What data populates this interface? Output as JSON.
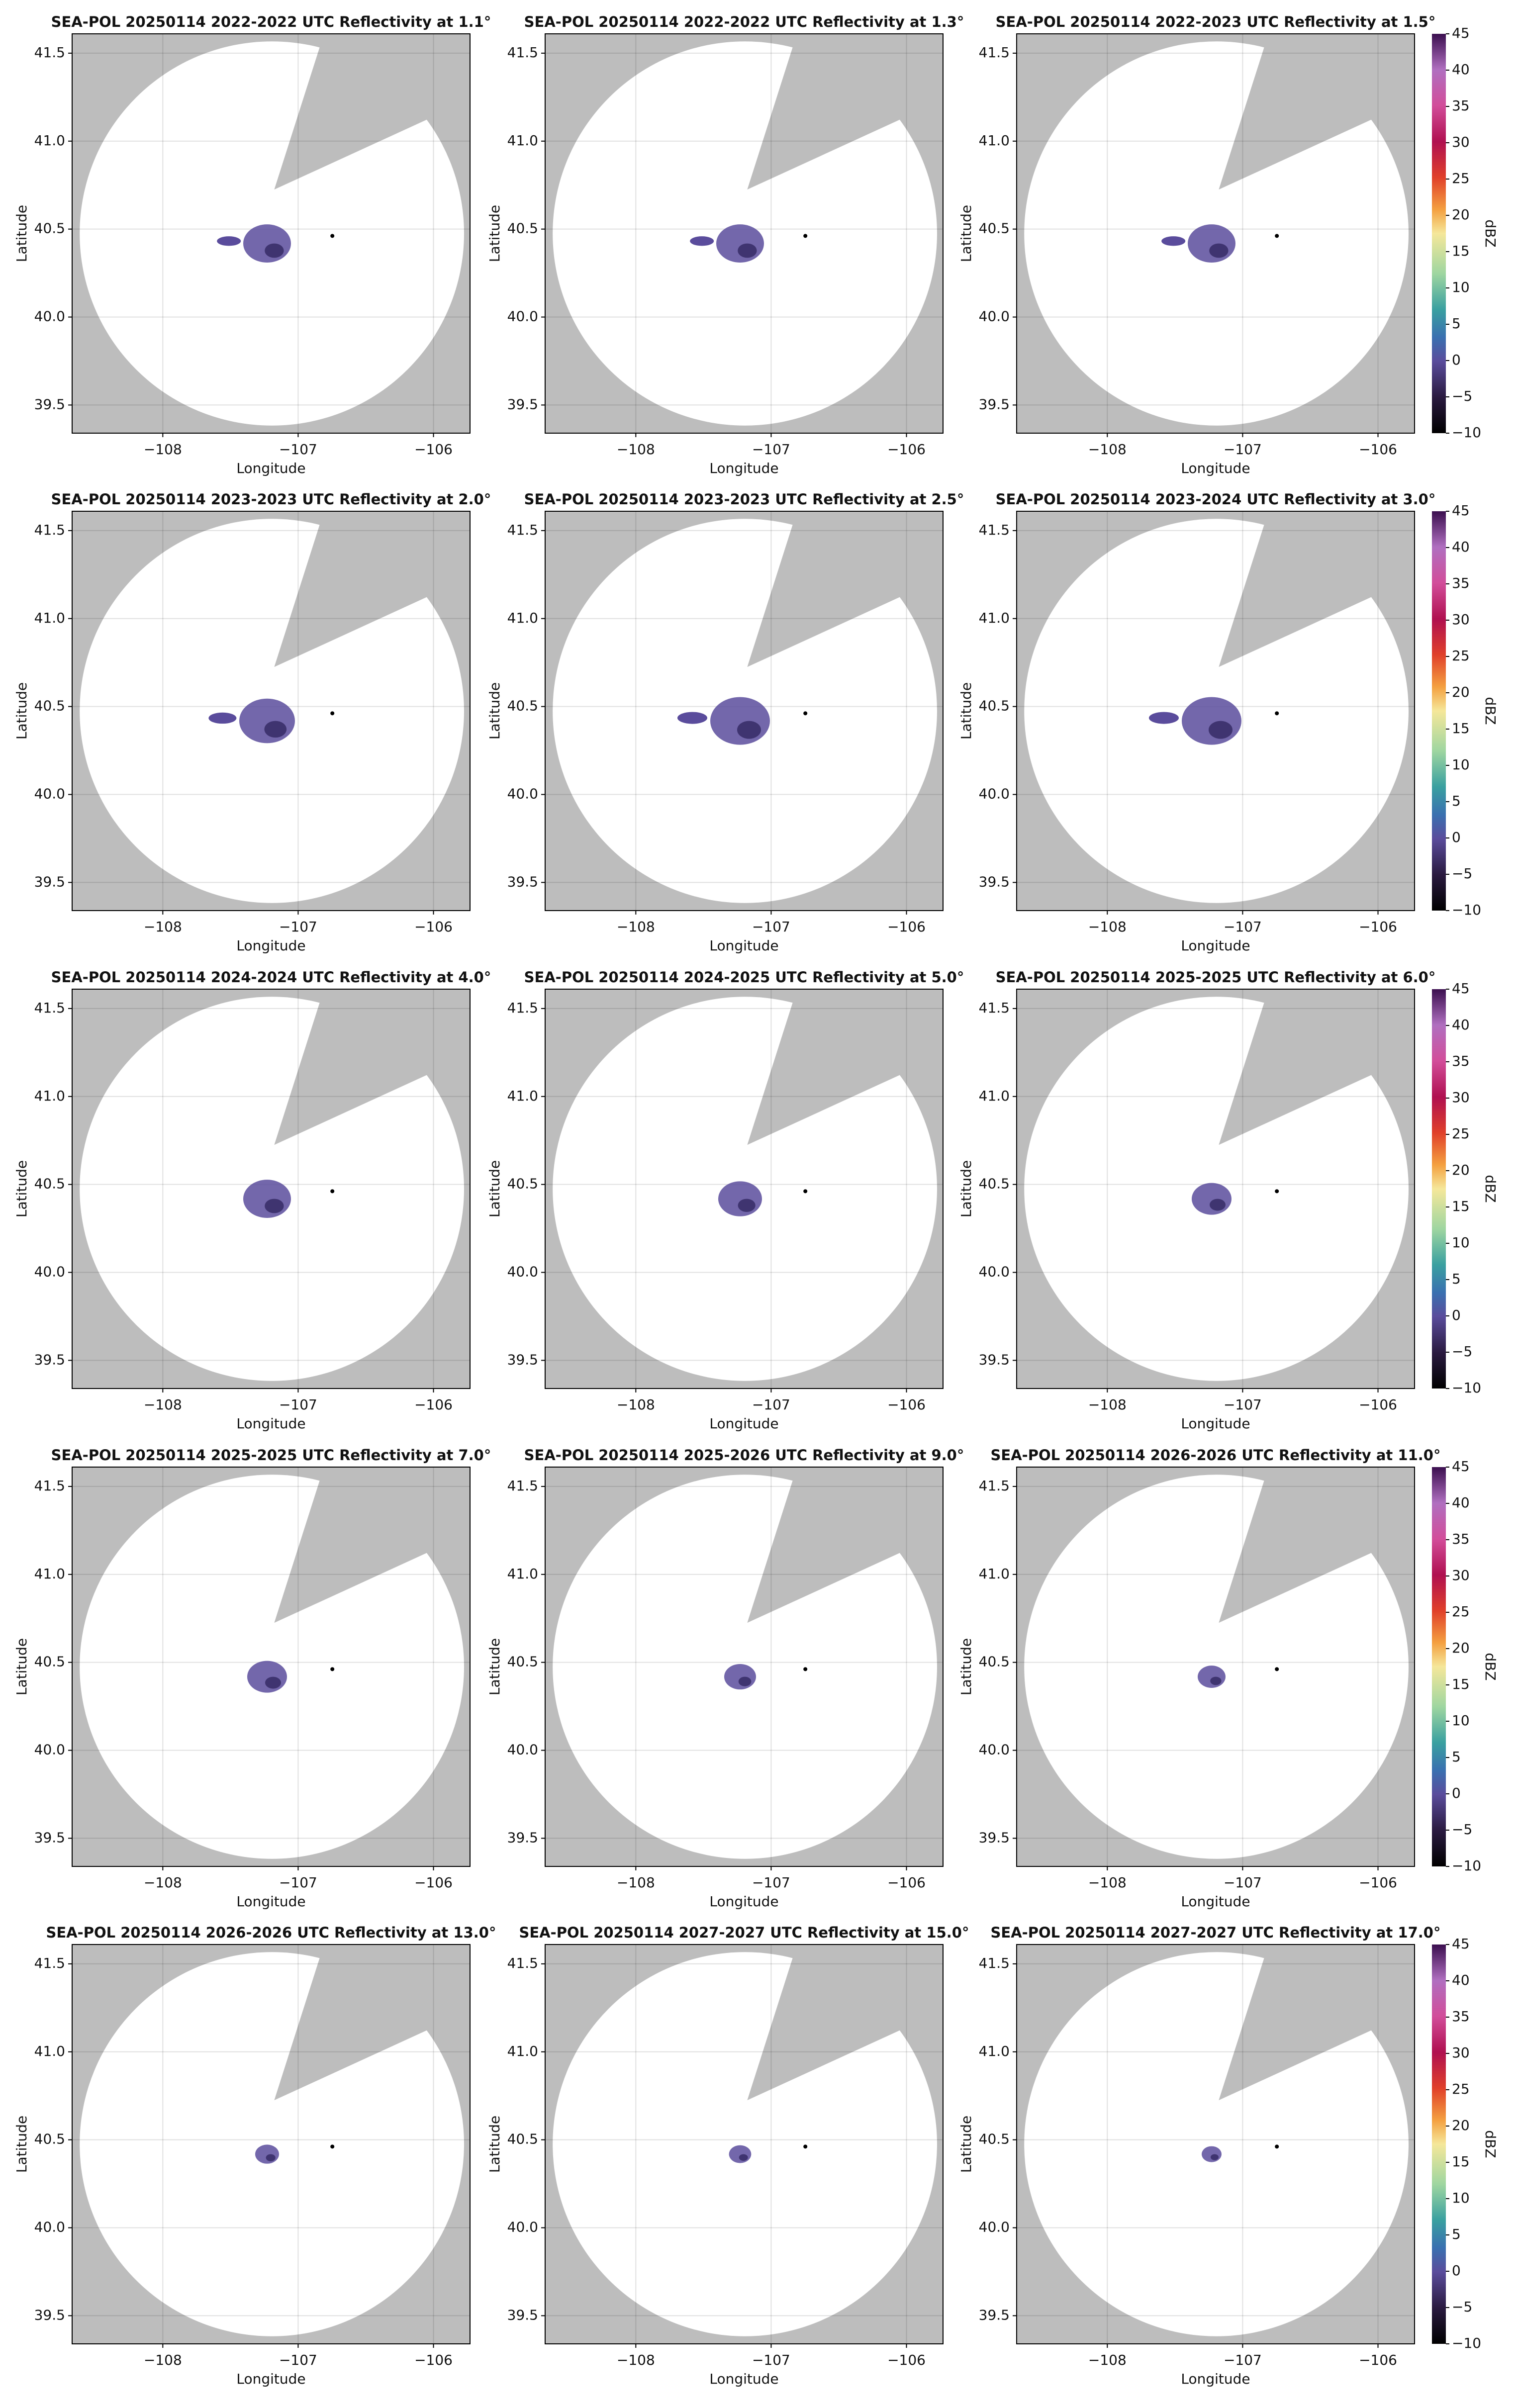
{
  "chart_data": [
    {
      "type": "radar",
      "title": "SEA-POL 20250114 2022-2022 UTC Reflectivity at 1.1°",
      "xlabel": "Longitude",
      "ylabel": "Latitude",
      "xlim": [
        -108.67,
        -105.73
      ],
      "ylim": [
        39.34,
        41.61
      ],
      "xticks": [
        {
          "value": -108,
          "label": "−108"
        },
        {
          "value": -107,
          "label": "−107"
        },
        {
          "value": -106,
          "label": "−106"
        }
      ],
      "yticks": [
        39.5,
        {
          "value": 40,
          "label": "40.0"
        },
        40.5,
        {
          "value": 41,
          "label": "41.0"
        },
        41.5
      ],
      "grid": true
    },
    {
      "type": "radar",
      "title": "SEA-POL 20250114 2022-2022 UTC Reflectivity at 1.3°",
      "xlabel": "Longitude",
      "ylabel": "Latitude",
      "xlim": [
        -108.67,
        -105.73
      ],
      "ylim": [
        39.34,
        41.61
      ],
      "xticks": [
        {
          "value": -108,
          "label": "−108"
        },
        {
          "value": -107,
          "label": "−107"
        },
        {
          "value": -106,
          "label": "−106"
        }
      ],
      "yticks": [
        39.5,
        {
          "value": 40,
          "label": "40.0"
        },
        40.5,
        {
          "value": 41,
          "label": "41.0"
        },
        41.5
      ],
      "grid": true
    },
    {
      "type": "radar",
      "title": "SEA-POL 20250114 2022-2023 UTC Reflectivity at 1.5°",
      "xlabel": "Longitude",
      "ylabel": "Latitude",
      "xlim": [
        -108.67,
        -105.73
      ],
      "ylim": [
        39.34,
        41.61
      ],
      "xticks": [
        {
          "value": -108,
          "label": "−108"
        },
        {
          "value": -107,
          "label": "−107"
        },
        {
          "value": -106,
          "label": "−106"
        }
      ],
      "yticks": [
        39.5,
        {
          "value": 40,
          "label": "40.0"
        },
        40.5,
        {
          "value": 41,
          "label": "41.0"
        },
        41.5
      ],
      "grid": true,
      "colorbar": {
        "label": "dBZ",
        "clim": [
          -10,
          45
        ],
        "ticks": [
          {
            "value": -10,
            "label": "−10"
          },
          {
            "value": -5,
            "label": "−5"
          },
          0,
          5,
          10,
          15,
          20,
          25,
          30,
          35,
          40,
          45
        ]
      }
    },
    {
      "type": "radar",
      "title": "SEA-POL 20250114 2023-2023 UTC Reflectivity at 2.0°",
      "xlabel": "Longitude",
      "ylabel": "Latitude",
      "xlim": [
        -108.67,
        -105.73
      ],
      "ylim": [
        39.34,
        41.61
      ],
      "xticks": [
        {
          "value": -108,
          "label": "−108"
        },
        {
          "value": -107,
          "label": "−107"
        },
        {
          "value": -106,
          "label": "−106"
        }
      ],
      "yticks": [
        39.5,
        {
          "value": 40,
          "label": "40.0"
        },
        40.5,
        {
          "value": 41,
          "label": "41.0"
        },
        41.5
      ],
      "grid": true
    },
    {
      "type": "radar",
      "title": "SEA-POL 20250114 2023-2023 UTC Reflectivity at 2.5°",
      "xlabel": "Longitude",
      "ylabel": "Latitude",
      "xlim": [
        -108.67,
        -105.73
      ],
      "ylim": [
        39.34,
        41.61
      ],
      "xticks": [
        {
          "value": -108,
          "label": "−108"
        },
        {
          "value": -107,
          "label": "−107"
        },
        {
          "value": -106,
          "label": "−106"
        }
      ],
      "yticks": [
        39.5,
        {
          "value": 40,
          "label": "40.0"
        },
        40.5,
        {
          "value": 41,
          "label": "41.0"
        },
        41.5
      ],
      "grid": true
    },
    {
      "type": "radar",
      "title": "SEA-POL 20250114 2023-2024 UTC Reflectivity at 3.0°",
      "xlabel": "Longitude",
      "ylabel": "Latitude",
      "xlim": [
        -108.67,
        -105.73
      ],
      "ylim": [
        39.34,
        41.61
      ],
      "xticks": [
        {
          "value": -108,
          "label": "−108"
        },
        {
          "value": -107,
          "label": "−107"
        },
        {
          "value": -106,
          "label": "−106"
        }
      ],
      "yticks": [
        39.5,
        {
          "value": 40,
          "label": "40.0"
        },
        40.5,
        {
          "value": 41,
          "label": "41.0"
        },
        41.5
      ],
      "grid": true,
      "colorbar": {
        "label": "dBZ",
        "clim": [
          -10,
          45
        ],
        "ticks": [
          {
            "value": -10,
            "label": "−10"
          },
          {
            "value": -5,
            "label": "−5"
          },
          0,
          5,
          10,
          15,
          20,
          25,
          30,
          35,
          40,
          45
        ]
      }
    },
    {
      "type": "radar",
      "title": "SEA-POL 20250114 2024-2024 UTC Reflectivity at 4.0°",
      "xlabel": "Longitude",
      "ylabel": "Latitude",
      "xlim": [
        -108.67,
        -105.73
      ],
      "ylim": [
        39.34,
        41.61
      ],
      "xticks": [
        {
          "value": -108,
          "label": "−108"
        },
        {
          "value": -107,
          "label": "−107"
        },
        {
          "value": -106,
          "label": "−106"
        }
      ],
      "yticks": [
        39.5,
        {
          "value": 40,
          "label": "40.0"
        },
        40.5,
        {
          "value": 41,
          "label": "41.0"
        },
        41.5
      ],
      "grid": true
    },
    {
      "type": "radar",
      "title": "SEA-POL 20250114 2024-2025 UTC Reflectivity at 5.0°",
      "xlabel": "Longitude",
      "ylabel": "Latitude",
      "xlim": [
        -108.67,
        -105.73
      ],
      "ylim": [
        39.34,
        41.61
      ],
      "xticks": [
        {
          "value": -108,
          "label": "−108"
        },
        {
          "value": -107,
          "label": "−107"
        },
        {
          "value": -106,
          "label": "−106"
        }
      ],
      "yticks": [
        39.5,
        {
          "value": 40,
          "label": "40.0"
        },
        40.5,
        {
          "value": 41,
          "label": "41.0"
        },
        41.5
      ],
      "grid": true
    },
    {
      "type": "radar",
      "title": "SEA-POL 20250114 2025-2025 UTC Reflectivity at 6.0°",
      "xlabel": "Longitude",
      "ylabel": "Latitude",
      "xlim": [
        -108.67,
        -105.73
      ],
      "ylim": [
        39.34,
        41.61
      ],
      "xticks": [
        {
          "value": -108,
          "label": "−108"
        },
        {
          "value": -107,
          "label": "−107"
        },
        {
          "value": -106,
          "label": "−106"
        }
      ],
      "yticks": [
        39.5,
        {
          "value": 40,
          "label": "40.0"
        },
        40.5,
        {
          "value": 41,
          "label": "41.0"
        },
        41.5
      ],
      "grid": true,
      "colorbar": {
        "label": "dBZ",
        "clim": [
          -10,
          45
        ],
        "ticks": [
          {
            "value": -10,
            "label": "−10"
          },
          {
            "value": -5,
            "label": "−5"
          },
          0,
          5,
          10,
          15,
          20,
          25,
          30,
          35,
          40,
          45
        ]
      }
    },
    {
      "type": "radar",
      "title": "SEA-POL 20250114 2025-2025 UTC Reflectivity at 7.0°",
      "xlabel": "Longitude",
      "ylabel": "Latitude",
      "xlim": [
        -108.67,
        -105.73
      ],
      "ylim": [
        39.34,
        41.61
      ],
      "xticks": [
        {
          "value": -108,
          "label": "−108"
        },
        {
          "value": -107,
          "label": "−107"
        },
        {
          "value": -106,
          "label": "−106"
        }
      ],
      "yticks": [
        39.5,
        {
          "value": 40,
          "label": "40.0"
        },
        40.5,
        {
          "value": 41,
          "label": "41.0"
        },
        41.5
      ],
      "grid": true
    },
    {
      "type": "radar",
      "title": "SEA-POL 20250114 2025-2026 UTC Reflectivity at 9.0°",
      "xlabel": "Longitude",
      "ylabel": "Latitude",
      "xlim": [
        -108.67,
        -105.73
      ],
      "ylim": [
        39.34,
        41.61
      ],
      "xticks": [
        {
          "value": -108,
          "label": "−108"
        },
        {
          "value": -107,
          "label": "−107"
        },
        {
          "value": -106,
          "label": "−106"
        }
      ],
      "yticks": [
        39.5,
        {
          "value": 40,
          "label": "40.0"
        },
        40.5,
        {
          "value": 41,
          "label": "41.0"
        },
        41.5
      ],
      "grid": true
    },
    {
      "type": "radar",
      "title": "SEA-POL 20250114 2026-2026 UTC Reflectivity at 11.0°",
      "xlabel": "Longitude",
      "ylabel": "Latitude",
      "xlim": [
        -108.67,
        -105.73
      ],
      "ylim": [
        39.34,
        41.61
      ],
      "xticks": [
        {
          "value": -108,
          "label": "−108"
        },
        {
          "value": -107,
          "label": "−107"
        },
        {
          "value": -106,
          "label": "−106"
        }
      ],
      "yticks": [
        39.5,
        {
          "value": 40,
          "label": "40.0"
        },
        40.5,
        {
          "value": 41,
          "label": "41.0"
        },
        41.5
      ],
      "grid": true,
      "colorbar": {
        "label": "dBZ",
        "clim": [
          -10,
          45
        ],
        "ticks": [
          {
            "value": -10,
            "label": "−10"
          },
          {
            "value": -5,
            "label": "−5"
          },
          0,
          5,
          10,
          15,
          20,
          25,
          30,
          35,
          40,
          45
        ]
      }
    },
    {
      "type": "radar",
      "title": "SEA-POL 20250114 2026-2026 UTC Reflectivity at 13.0°",
      "xlabel": "Longitude",
      "ylabel": "Latitude",
      "xlim": [
        -108.67,
        -105.73
      ],
      "ylim": [
        39.34,
        41.61
      ],
      "xticks": [
        {
          "value": -108,
          "label": "−108"
        },
        {
          "value": -107,
          "label": "−107"
        },
        {
          "value": -106,
          "label": "−106"
        }
      ],
      "yticks": [
        39.5,
        {
          "value": 40,
          "label": "40.0"
        },
        40.5,
        {
          "value": 41,
          "label": "41.0"
        },
        41.5
      ],
      "grid": true
    },
    {
      "type": "radar",
      "title": "SEA-POL 20250114 2027-2027 UTC Reflectivity at 15.0°",
      "xlabel": "Longitude",
      "ylabel": "Latitude",
      "xlim": [
        -108.67,
        -105.73
      ],
      "ylim": [
        39.34,
        41.61
      ],
      "xticks": [
        {
          "value": -108,
          "label": "−108"
        },
        {
          "value": -107,
          "label": "−107"
        },
        {
          "value": -106,
          "label": "−106"
        }
      ],
      "yticks": [
        39.5,
        {
          "value": 40,
          "label": "40.0"
        },
        40.5,
        {
          "value": 41,
          "label": "41.0"
        },
        41.5
      ],
      "grid": true
    },
    {
      "type": "radar",
      "title": "SEA-POL 20250114 2027-2027 UTC Reflectivity at 17.0°",
      "xlabel": "Longitude",
      "ylabel": "Latitude",
      "xlim": [
        -108.67,
        -105.73
      ],
      "ylim": [
        39.34,
        41.61
      ],
      "xticks": [
        {
          "value": -108,
          "label": "−108"
        },
        {
          "value": -107,
          "label": "−107"
        },
        {
          "value": -106,
          "label": "−106"
        }
      ],
      "yticks": [
        39.5,
        {
          "value": 40,
          "label": "40.0"
        },
        40.5,
        {
          "value": 41,
          "label": "41.0"
        },
        41.5
      ],
      "grid": true,
      "colorbar": {
        "label": "dBZ",
        "clim": [
          -10,
          45
        ],
        "ticks": [
          {
            "value": -10,
            "label": "−10"
          },
          {
            "value": -5,
            "label": "−5"
          },
          0,
          5,
          10,
          15,
          20,
          25,
          30,
          35,
          40,
          45
        ]
      }
    }
  ]
}
